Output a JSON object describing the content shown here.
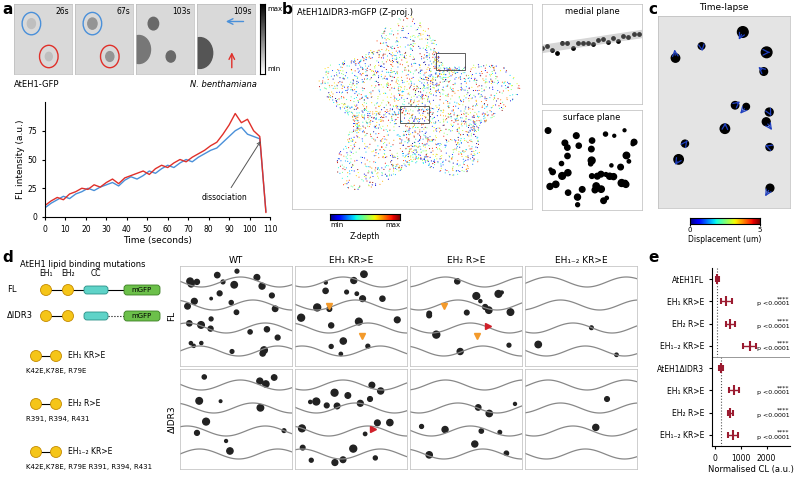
{
  "panel_labels": [
    "a",
    "b",
    "c",
    "d",
    "e"
  ],
  "chart_data": [
    {
      "type": "line",
      "xlabel": "Time (seconds)",
      "ylabel": "FL intensity (a.u.)",
      "annotation": "dissociation",
      "x": [
        0,
        3,
        6,
        9,
        12,
        15,
        18,
        21,
        24,
        27,
        30,
        33,
        36,
        39,
        42,
        45,
        48,
        51,
        54,
        57,
        60,
        63,
        66,
        69,
        72,
        75,
        78,
        81,
        84,
        87,
        90,
        93,
        96,
        99,
        102,
        105,
        108
      ],
      "series": [
        {
          "color": "#4a90d9",
          "values": [
            8,
            12,
            15,
            18,
            16,
            20,
            22,
            25,
            23,
            26,
            28,
            30,
            27,
            32,
            35,
            33,
            36,
            40,
            38,
            42,
            45,
            43,
            47,
            50,
            48,
            52,
            55,
            58,
            60,
            65,
            70,
            75,
            78,
            72,
            70,
            68,
            5
          ]
        },
        {
          "color": "#e0302a",
          "values": [
            10,
            14,
            17,
            15,
            20,
            22,
            25,
            24,
            28,
            26,
            30,
            33,
            29,
            34,
            36,
            38,
            40,
            37,
            42,
            45,
            43,
            47,
            50,
            48,
            52,
            55,
            58,
            62,
            65,
            72,
            80,
            90,
            82,
            85,
            75,
            70,
            4
          ]
        }
      ],
      "xlim": [
        0,
        110
      ],
      "xticks": [
        0,
        10,
        20,
        30,
        40,
        50,
        60,
        70,
        80,
        90,
        100,
        110
      ],
      "ylim": [
        0,
        100
      ],
      "yticks": [
        0,
        25,
        50,
        75
      ]
    },
    {
      "type": "scatter",
      "orientation": "horizontal",
      "marker": "|",
      "xlabel": "Normalised CL (a.u.)",
      "categories": [
        "AtEH1FL",
        "EH₁ KR>E",
        "EH₂ R>E",
        "EH₁₋₂ KR>E",
        "AtEH1ΔIDR3",
        "EH₁ KR>E",
        "EH₂ R>E",
        "EH₁₋₂ KR>E"
      ],
      "values": [
        100,
        450,
        600,
        1350,
        250,
        750,
        600,
        700
      ],
      "errors": [
        60,
        200,
        180,
        250,
        80,
        180,
        100,
        200
      ],
      "colors": [
        "#9b1b30",
        "#9b1b30",
        "#9b1b30",
        "#9b1b30",
        "#9b1b30",
        "#9b1b30",
        "#9b1b30",
        "#9b1b30"
      ],
      "annotations": [
        null,
        {
          "stars": "****",
          "p": "p <0.0001"
        },
        {
          "stars": "****",
          "p": "p <0.0001"
        },
        {
          "stars": "****",
          "p": "p <0.0001"
        },
        null,
        {
          "stars": "****",
          "p": "p <0.0001"
        },
        {
          "stars": "****",
          "p": "p <0.0001"
        },
        {
          "stars": "****",
          "p": "p <0.0001"
        }
      ],
      "xlim": [
        -100,
        2900
      ],
      "xticks": [
        0,
        1000,
        2000
      ]
    }
  ],
  "panel_a_images": {
    "timestamps": [
      "26s",
      "67s",
      "103s",
      "109s"
    ],
    "scale": [
      "max",
      "min"
    ],
    "caption": "AtEH1-GFP",
    "species": "N. benthamiana"
  },
  "panel_b": {
    "title": "AtEH1ΔIDR3-mGFP (Z-proj.)",
    "insets": [
      "medial plane",
      "surface plane"
    ],
    "colorbar_label": "Z-depth",
    "colorbar_ends": [
      "min",
      "max"
    ]
  },
  "panel_c": {
    "title": "Time-lapse",
    "colorbar_label": "Displacement (um)",
    "colorbar_range": [
      0,
      5
    ]
  },
  "panel_d": {
    "title": "AtEH1 lipid binding mutations",
    "domains": [
      "EH₁",
      "EH₂",
      "CC",
      "mGFP"
    ],
    "rows": [
      "FL",
      "ΔIDR3"
    ],
    "mutants": [
      {
        "name": "EH₁ KR>E",
        "residues": "K42E,K78E, R79E"
      },
      {
        "name": "EH₂ R>E",
        "residues": "R391, R394, R431"
      },
      {
        "name": "EH₁₋₂ KR>E",
        "residues": "K42E,K78E, R79E R391, R394, R431"
      }
    ],
    "columns": [
      "WT",
      "EH₁ KR>E",
      "EH₂ R>E",
      "EH₁₋₂ KR>E"
    ]
  }
}
